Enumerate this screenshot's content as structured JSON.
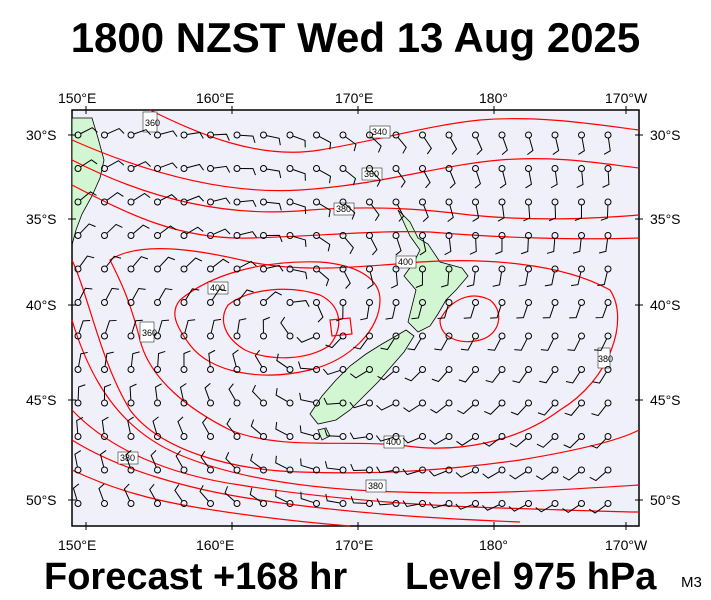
{
  "title": "1800 NZST Wed 13 Aug 2025",
  "forecast": "Forecast +168 hr",
  "level": "Level 975 hPa",
  "model": "M3",
  "lon_labels": [
    "150°E",
    "160°E",
    "170°E",
    "180°",
    "170°W"
  ],
  "lat_labels": [
    "30°S",
    "35°S",
    "40°S",
    "45°S",
    "50°S"
  ],
  "contour_labels": [
    "360",
    "360",
    "340",
    "360",
    "380",
    "400",
    "400",
    "380",
    "380",
    "400",
    "380",
    "380",
    "380"
  ],
  "colors": {
    "ocean": "#f0f0fa",
    "land": "#d2f5d2",
    "contour": "#ff0000",
    "frame": "#000000"
  }
}
